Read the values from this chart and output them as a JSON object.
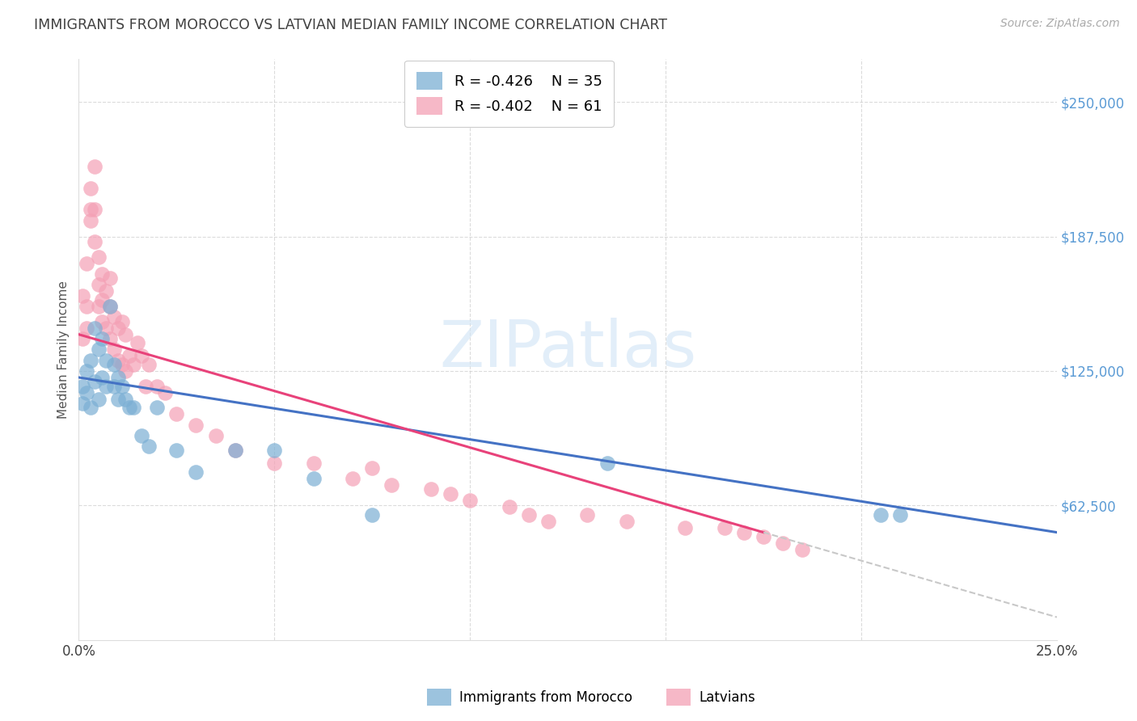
{
  "title": "IMMIGRANTS FROM MOROCCO VS LATVIAN MEDIAN FAMILY INCOME CORRELATION CHART",
  "source": "Source: ZipAtlas.com",
  "ylabel": "Median Family Income",
  "ytick_labels": [
    "$62,500",
    "$125,000",
    "$187,500",
    "$250,000"
  ],
  "ytick_values": [
    62500,
    125000,
    187500,
    250000
  ],
  "ymin": 0,
  "ymax": 270000,
  "xmin": 0.0,
  "xmax": 0.25,
  "legend_blue_r": "-0.426",
  "legend_blue_n": "35",
  "legend_pink_r": "-0.402",
  "legend_pink_n": "61",
  "legend_label_blue": "Immigrants from Morocco",
  "legend_label_pink": "Latvians",
  "blue_color": "#7bafd4",
  "pink_color": "#f4a0b5",
  "trendline_blue_color": "#4472c4",
  "trendline_pink_color": "#e8427a",
  "trendline_dashed_color": "#c8c8c8",
  "blue_x": [
    0.001,
    0.001,
    0.002,
    0.002,
    0.003,
    0.003,
    0.004,
    0.004,
    0.005,
    0.005,
    0.006,
    0.006,
    0.007,
    0.007,
    0.008,
    0.009,
    0.009,
    0.01,
    0.01,
    0.011,
    0.012,
    0.013,
    0.014,
    0.016,
    0.018,
    0.02,
    0.025,
    0.03,
    0.04,
    0.05,
    0.06,
    0.075,
    0.135,
    0.205,
    0.21
  ],
  "blue_y": [
    118000,
    110000,
    125000,
    115000,
    130000,
    108000,
    145000,
    120000,
    135000,
    112000,
    140000,
    122000,
    130000,
    118000,
    155000,
    128000,
    118000,
    122000,
    112000,
    118000,
    112000,
    108000,
    108000,
    95000,
    90000,
    108000,
    88000,
    78000,
    88000,
    88000,
    75000,
    58000,
    82000,
    58000,
    58000
  ],
  "pink_x": [
    0.001,
    0.001,
    0.002,
    0.002,
    0.002,
    0.003,
    0.003,
    0.003,
    0.004,
    0.004,
    0.004,
    0.005,
    0.005,
    0.005,
    0.006,
    0.006,
    0.006,
    0.007,
    0.007,
    0.008,
    0.008,
    0.008,
    0.009,
    0.009,
    0.01,
    0.01,
    0.011,
    0.011,
    0.012,
    0.012,
    0.013,
    0.014,
    0.015,
    0.016,
    0.017,
    0.018,
    0.02,
    0.022,
    0.025,
    0.03,
    0.035,
    0.04,
    0.05,
    0.06,
    0.07,
    0.075,
    0.08,
    0.09,
    0.095,
    0.1,
    0.11,
    0.115,
    0.12,
    0.13,
    0.14,
    0.155,
    0.165,
    0.17,
    0.175,
    0.18,
    0.185
  ],
  "pink_y": [
    160000,
    140000,
    175000,
    155000,
    145000,
    200000,
    210000,
    195000,
    220000,
    200000,
    185000,
    178000,
    165000,
    155000,
    170000,
    158000,
    148000,
    162000,
    145000,
    168000,
    155000,
    140000,
    150000,
    135000,
    145000,
    130000,
    148000,
    128000,
    142000,
    125000,
    132000,
    128000,
    138000,
    132000,
    118000,
    128000,
    118000,
    115000,
    105000,
    100000,
    95000,
    88000,
    82000,
    82000,
    75000,
    80000,
    72000,
    70000,
    68000,
    65000,
    62000,
    58000,
    55000,
    58000,
    55000,
    52000,
    52000,
    50000,
    48000,
    45000,
    42000
  ],
  "background_color": "#ffffff",
  "grid_color": "#cccccc",
  "yaxis_label_color": "#5b9bd5",
  "title_color": "#404040",
  "title_fontsize": 12.5,
  "source_fontsize": 10,
  "watermark_text": "ZIPatlas",
  "watermark_color": "#d0e4f5"
}
